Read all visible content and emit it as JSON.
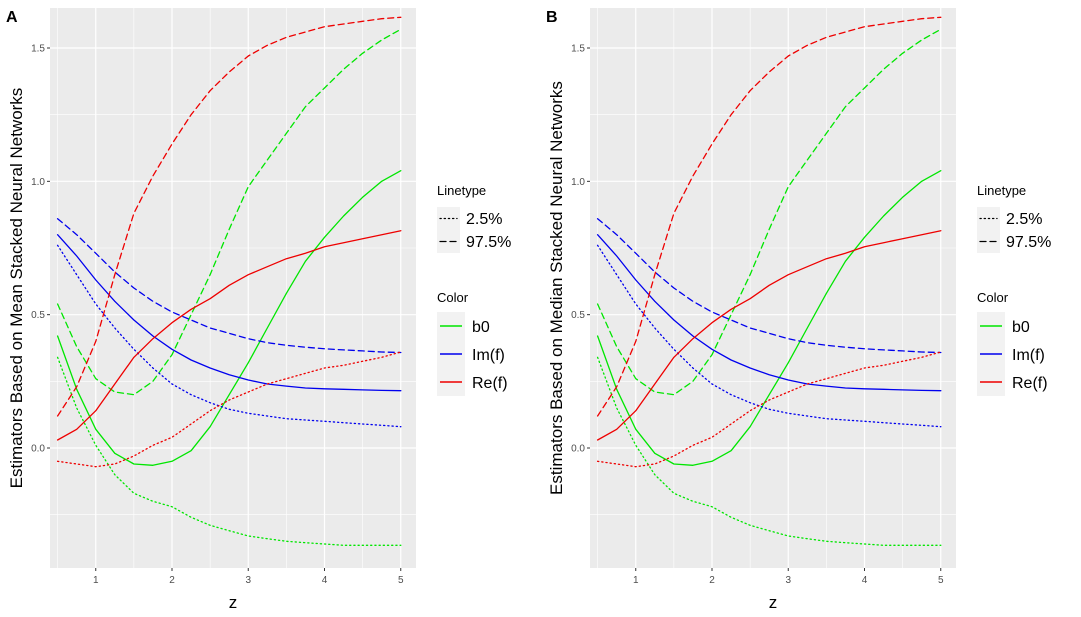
{
  "chart_data": [
    {
      "type": "line",
      "panel_tag": "A",
      "xlabel": "z",
      "ylabel": "Estimators Based on Mean Stacked Neural Networks",
      "xlim": [
        0.4,
        5.2
      ],
      "ylim": [
        -0.45,
        1.65
      ],
      "xticks": [
        1,
        2,
        3,
        4,
        5
      ],
      "xtick_labels": [
        "1",
        "2",
        "3",
        "4",
        "5"
      ],
      "yticks": [
        0.0,
        0.5,
        1.0,
        1.5
      ],
      "ytick_labels": [
        "0.0",
        "0.5",
        "1.0",
        "1.5"
      ],
      "grid": true,
      "legend_position": "right",
      "legend_linetype": {
        "title": "Linetype",
        "entries": [
          "2.5%",
          "97.5%"
        ]
      },
      "legend_color": {
        "title": "Color",
        "entries": [
          "b0",
          "Im(f)",
          "Re(f)"
        ]
      },
      "series": [
        {
          "name": "b0",
          "linetype": "solid",
          "color": "#00e600",
          "x": [
            0.5,
            0.75,
            1.0,
            1.25,
            1.5,
            1.75,
            2.0,
            2.25,
            2.5,
            2.75,
            3.0,
            3.25,
            3.5,
            3.75,
            4.0,
            4.25,
            4.5,
            4.75,
            5.0
          ],
          "y": [
            0.42,
            0.22,
            0.07,
            -0.02,
            -0.06,
            -0.065,
            -0.05,
            -0.01,
            0.08,
            0.2,
            0.32,
            0.45,
            0.58,
            0.7,
            0.79,
            0.87,
            0.94,
            1.0,
            1.04
          ]
        },
        {
          "name": "b0 2.5%",
          "linetype": "dotted",
          "color": "#00e600",
          "x": [
            0.5,
            0.75,
            1.0,
            1.25,
            1.5,
            1.75,
            2.0,
            2.25,
            2.5,
            2.75,
            3.0,
            3.25,
            3.5,
            3.75,
            4.0,
            4.25,
            4.5,
            4.75,
            5.0
          ],
          "y": [
            0.34,
            0.15,
            0.01,
            -0.1,
            -0.17,
            -0.2,
            -0.22,
            -0.26,
            -0.29,
            -0.31,
            -0.33,
            -0.34,
            -0.35,
            -0.355,
            -0.36,
            -0.365,
            -0.365,
            -0.365,
            -0.365
          ]
        },
        {
          "name": "b0 97.5%",
          "linetype": "dashed",
          "color": "#00e600",
          "x": [
            0.5,
            0.75,
            1.0,
            1.25,
            1.5,
            1.75,
            2.0,
            2.25,
            2.5,
            2.75,
            3.0,
            3.25,
            3.5,
            3.75,
            4.0,
            4.25,
            4.5,
            4.75,
            5.0
          ],
          "y": [
            0.54,
            0.38,
            0.26,
            0.21,
            0.2,
            0.25,
            0.35,
            0.5,
            0.65,
            0.82,
            0.98,
            1.08,
            1.18,
            1.28,
            1.35,
            1.42,
            1.48,
            1.53,
            1.57
          ]
        },
        {
          "name": "Im(f)",
          "linetype": "solid",
          "color": "#0000ee",
          "x": [
            0.5,
            0.75,
            1.0,
            1.25,
            1.5,
            1.75,
            2.0,
            2.25,
            2.5,
            2.75,
            3.0,
            3.25,
            3.5,
            3.75,
            4.0,
            4.25,
            4.5,
            4.75,
            5.0
          ],
          "y": [
            0.8,
            0.72,
            0.63,
            0.55,
            0.48,
            0.42,
            0.37,
            0.33,
            0.3,
            0.275,
            0.255,
            0.24,
            0.232,
            0.225,
            0.222,
            0.22,
            0.218,
            0.216,
            0.215
          ]
        },
        {
          "name": "Im(f) 2.5%",
          "linetype": "dotted",
          "color": "#0000ee",
          "x": [
            0.5,
            0.75,
            1.0,
            1.25,
            1.5,
            1.75,
            2.0,
            2.25,
            2.5,
            2.75,
            3.0,
            3.25,
            3.5,
            3.75,
            4.0,
            4.25,
            4.5,
            4.75,
            5.0
          ],
          "y": [
            0.76,
            0.65,
            0.54,
            0.45,
            0.37,
            0.3,
            0.24,
            0.2,
            0.17,
            0.145,
            0.13,
            0.12,
            0.11,
            0.105,
            0.1,
            0.095,
            0.09,
            0.085,
            0.08
          ]
        },
        {
          "name": "Im(f) 97.5%",
          "linetype": "dashed",
          "color": "#0000ee",
          "x": [
            0.5,
            0.75,
            1.0,
            1.25,
            1.5,
            1.75,
            2.0,
            2.25,
            2.5,
            2.75,
            3.0,
            3.25,
            3.5,
            3.75,
            4.0,
            4.25,
            4.5,
            4.75,
            5.0
          ],
          "y": [
            0.86,
            0.8,
            0.73,
            0.66,
            0.6,
            0.55,
            0.51,
            0.48,
            0.45,
            0.43,
            0.41,
            0.395,
            0.385,
            0.378,
            0.372,
            0.368,
            0.364,
            0.36,
            0.358
          ]
        },
        {
          "name": "Re(f)",
          "linetype": "solid",
          "color": "#ee0000",
          "x": [
            0.5,
            0.75,
            1.0,
            1.25,
            1.5,
            1.75,
            2.0,
            2.25,
            2.5,
            2.75,
            3.0,
            3.25,
            3.5,
            3.75,
            4.0,
            4.25,
            4.5,
            4.75,
            5.0
          ],
          "y": [
            0.03,
            0.07,
            0.14,
            0.24,
            0.34,
            0.41,
            0.47,
            0.52,
            0.56,
            0.61,
            0.65,
            0.68,
            0.71,
            0.73,
            0.755,
            0.77,
            0.785,
            0.8,
            0.815
          ]
        },
        {
          "name": "Re(f) 2.5%",
          "linetype": "dotted",
          "color": "#ee0000",
          "x": [
            0.5,
            0.75,
            1.0,
            1.25,
            1.5,
            1.75,
            2.0,
            2.25,
            2.5,
            2.75,
            3.0,
            3.25,
            3.5,
            3.75,
            4.0,
            4.25,
            4.5,
            4.75,
            5.0
          ],
          "y": [
            -0.05,
            -0.06,
            -0.07,
            -0.06,
            -0.03,
            0.01,
            0.04,
            0.09,
            0.14,
            0.18,
            0.21,
            0.24,
            0.26,
            0.28,
            0.3,
            0.31,
            0.325,
            0.34,
            0.36
          ]
        },
        {
          "name": "Re(f) 97.5%",
          "linetype": "dashed",
          "color": "#ee0000",
          "x": [
            0.5,
            0.75,
            1.0,
            1.25,
            1.5,
            1.75,
            2.0,
            2.25,
            2.5,
            2.75,
            3.0,
            3.25,
            3.5,
            3.75,
            4.0,
            4.25,
            4.5,
            4.75,
            5.0
          ],
          "y": [
            0.12,
            0.23,
            0.4,
            0.65,
            0.88,
            1.02,
            1.14,
            1.25,
            1.34,
            1.41,
            1.47,
            1.51,
            1.54,
            1.56,
            1.58,
            1.59,
            1.6,
            1.61,
            1.615
          ]
        }
      ]
    },
    {
      "type": "line",
      "panel_tag": "B",
      "xlabel": "z",
      "ylabel": "Estimators Based on Median Stacked Neural Networks",
      "xlim": [
        0.4,
        5.2
      ],
      "ylim": [
        -0.45,
        1.65
      ],
      "xticks": [
        1,
        2,
        3,
        4,
        5
      ],
      "xtick_labels": [
        "1",
        "2",
        "3",
        "4",
        "5"
      ],
      "yticks": [
        0.0,
        0.5,
        1.0,
        1.5
      ],
      "ytick_labels": [
        "0.0",
        "0.5",
        "1.0",
        "1.5"
      ],
      "grid": true,
      "legend_position": "right",
      "legend_linetype": {
        "title": "Linetype",
        "entries": [
          "2.5%",
          "97.5%"
        ]
      },
      "legend_color": {
        "title": "Color",
        "entries": [
          "b0",
          "Im(f)",
          "Re(f)"
        ]
      },
      "series": [
        {
          "name": "b0",
          "linetype": "solid",
          "color": "#00e600",
          "x": [
            0.5,
            0.75,
            1.0,
            1.25,
            1.5,
            1.75,
            2.0,
            2.25,
            2.5,
            2.75,
            3.0,
            3.25,
            3.5,
            3.75,
            4.0,
            4.25,
            4.5,
            4.75,
            5.0
          ],
          "y": [
            0.42,
            0.22,
            0.07,
            -0.02,
            -0.06,
            -0.065,
            -0.05,
            -0.01,
            0.08,
            0.2,
            0.32,
            0.45,
            0.58,
            0.7,
            0.79,
            0.87,
            0.94,
            1.0,
            1.04
          ]
        },
        {
          "name": "b0 2.5%",
          "linetype": "dotted",
          "color": "#00e600",
          "x": [
            0.5,
            0.75,
            1.0,
            1.25,
            1.5,
            1.75,
            2.0,
            2.25,
            2.5,
            2.75,
            3.0,
            3.25,
            3.5,
            3.75,
            4.0,
            4.25,
            4.5,
            4.75,
            5.0
          ],
          "y": [
            0.34,
            0.15,
            0.01,
            -0.1,
            -0.17,
            -0.2,
            -0.22,
            -0.26,
            -0.29,
            -0.31,
            -0.33,
            -0.34,
            -0.35,
            -0.355,
            -0.36,
            -0.365,
            -0.365,
            -0.365,
            -0.365
          ]
        },
        {
          "name": "b0 97.5%",
          "linetype": "dashed",
          "color": "#00e600",
          "x": [
            0.5,
            0.75,
            1.0,
            1.25,
            1.5,
            1.75,
            2.0,
            2.25,
            2.5,
            2.75,
            3.0,
            3.25,
            3.5,
            3.75,
            4.0,
            4.25,
            4.5,
            4.75,
            5.0
          ],
          "y": [
            0.54,
            0.38,
            0.26,
            0.21,
            0.2,
            0.25,
            0.35,
            0.5,
            0.65,
            0.82,
            0.98,
            1.08,
            1.18,
            1.28,
            1.35,
            1.42,
            1.48,
            1.53,
            1.57
          ]
        },
        {
          "name": "Im(f)",
          "linetype": "solid",
          "color": "#0000ee",
          "x": [
            0.5,
            0.75,
            1.0,
            1.25,
            1.5,
            1.75,
            2.0,
            2.25,
            2.5,
            2.75,
            3.0,
            3.25,
            3.5,
            3.75,
            4.0,
            4.25,
            4.5,
            4.75,
            5.0
          ],
          "y": [
            0.8,
            0.72,
            0.63,
            0.55,
            0.48,
            0.42,
            0.37,
            0.33,
            0.3,
            0.275,
            0.255,
            0.24,
            0.232,
            0.225,
            0.222,
            0.22,
            0.218,
            0.216,
            0.215
          ]
        },
        {
          "name": "Im(f) 2.5%",
          "linetype": "dotted",
          "color": "#0000ee",
          "x": [
            0.5,
            0.75,
            1.0,
            1.25,
            1.5,
            1.75,
            2.0,
            2.25,
            2.5,
            2.75,
            3.0,
            3.25,
            3.5,
            3.75,
            4.0,
            4.25,
            4.5,
            4.75,
            5.0
          ],
          "y": [
            0.76,
            0.65,
            0.54,
            0.45,
            0.37,
            0.3,
            0.24,
            0.2,
            0.17,
            0.145,
            0.13,
            0.12,
            0.11,
            0.105,
            0.1,
            0.095,
            0.09,
            0.085,
            0.08
          ]
        },
        {
          "name": "Im(f) 97.5%",
          "linetype": "dashed",
          "color": "#0000ee",
          "x": [
            0.5,
            0.75,
            1.0,
            1.25,
            1.5,
            1.75,
            2.0,
            2.25,
            2.5,
            2.75,
            3.0,
            3.25,
            3.5,
            3.75,
            4.0,
            4.25,
            4.5,
            4.75,
            5.0
          ],
          "y": [
            0.86,
            0.8,
            0.73,
            0.66,
            0.6,
            0.55,
            0.51,
            0.48,
            0.45,
            0.43,
            0.41,
            0.395,
            0.385,
            0.378,
            0.372,
            0.368,
            0.364,
            0.36,
            0.358
          ]
        },
        {
          "name": "Re(f)",
          "linetype": "solid",
          "color": "#ee0000",
          "x": [
            0.5,
            0.75,
            1.0,
            1.25,
            1.5,
            1.75,
            2.0,
            2.25,
            2.5,
            2.75,
            3.0,
            3.25,
            3.5,
            3.75,
            4.0,
            4.25,
            4.5,
            4.75,
            5.0
          ],
          "y": [
            0.03,
            0.07,
            0.14,
            0.24,
            0.34,
            0.41,
            0.47,
            0.52,
            0.56,
            0.61,
            0.65,
            0.68,
            0.71,
            0.73,
            0.755,
            0.77,
            0.785,
            0.8,
            0.815
          ]
        },
        {
          "name": "Re(f) 2.5%",
          "linetype": "dotted",
          "color": "#ee0000",
          "x": [
            0.5,
            0.75,
            1.0,
            1.25,
            1.5,
            1.75,
            2.0,
            2.25,
            2.5,
            2.75,
            3.0,
            3.25,
            3.5,
            3.75,
            4.0,
            4.25,
            4.5,
            4.75,
            5.0
          ],
          "y": [
            -0.05,
            -0.06,
            -0.07,
            -0.06,
            -0.03,
            0.01,
            0.04,
            0.09,
            0.14,
            0.18,
            0.21,
            0.24,
            0.26,
            0.28,
            0.3,
            0.31,
            0.325,
            0.34,
            0.36
          ]
        },
        {
          "name": "Re(f) 97.5%",
          "linetype": "dashed",
          "color": "#ee0000",
          "x": [
            0.5,
            0.75,
            1.0,
            1.25,
            1.5,
            1.75,
            2.0,
            2.25,
            2.5,
            2.75,
            3.0,
            3.25,
            3.5,
            3.75,
            4.0,
            4.25,
            4.5,
            4.75,
            5.0
          ],
          "y": [
            0.12,
            0.23,
            0.4,
            0.65,
            0.88,
            1.02,
            1.14,
            1.25,
            1.34,
            1.41,
            1.47,
            1.51,
            1.54,
            1.56,
            1.58,
            1.59,
            1.6,
            1.61,
            1.615
          ]
        }
      ]
    }
  ],
  "colors": {
    "panel_background": "#ebebeb",
    "grid": "#ffffff",
    "legend_key_background": "#f2f2f2",
    "tick_text": "#4d4d4d"
  }
}
